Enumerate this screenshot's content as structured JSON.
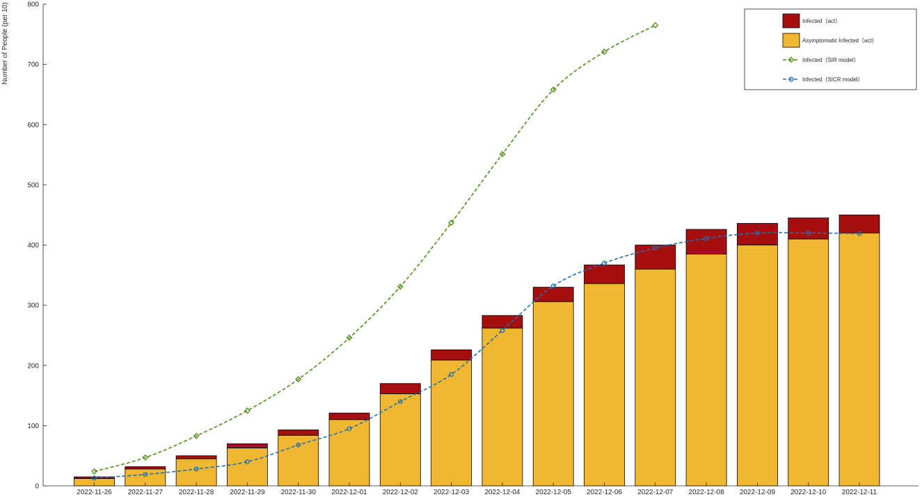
{
  "chart_data": {
    "type": "bar",
    "stacked": true,
    "title": "",
    "xlabel": "",
    "ylabel": "Number of People (per 10)",
    "ylim": [
      0,
      800
    ],
    "yticks": [
      0,
      100,
      200,
      300,
      400,
      500,
      600,
      700,
      800
    ],
    "grid": false,
    "legend_position": "top-right",
    "categories": [
      "2022-11-26",
      "2022-11-27",
      "2022-11-28",
      "2022-11-29",
      "2022-11-30",
      "2022-12-01",
      "2022-12-02",
      "2022-12-03",
      "2022-12-04",
      "2022-12-05",
      "2022-12-06",
      "2022-12-07",
      "2022-12-08",
      "2022-12-09",
      "2022-12-10",
      "2022-12-11"
    ],
    "series": [
      {
        "name": "Asymptomatic Infected（act）",
        "kind": "bar-stack-base",
        "color": "#F2B731",
        "values": [
          12,
          28,
          45,
          63,
          84,
          110,
          153,
          209,
          262,
          306,
          336,
          360,
          385,
          400,
          410,
          420
        ]
      },
      {
        "name": "Infected（act）",
        "kind": "bar-stack-top",
        "color": "#A60F0F",
        "values": [
          3,
          4,
          5,
          7,
          9,
          11,
          17,
          17,
          21,
          24,
          31,
          40,
          41,
          36,
          35,
          30
        ]
      },
      {
        "name": "Infected（SIR model）",
        "kind": "line",
        "marker": "diamond",
        "color": "#4E8C12",
        "values": [
          24,
          47,
          83,
          125,
          177,
          246,
          331,
          437,
          551,
          658,
          721,
          765,
          null,
          null,
          null,
          null
        ]
      },
      {
        "name": "Infected（SICR model）",
        "kind": "line",
        "marker": "circle",
        "color": "#1F6FB0",
        "values": [
          13,
          19,
          28,
          40,
          68,
          95,
          140,
          185,
          258,
          332,
          370,
          395,
          411,
          420,
          420,
          419
        ]
      }
    ]
  }
}
